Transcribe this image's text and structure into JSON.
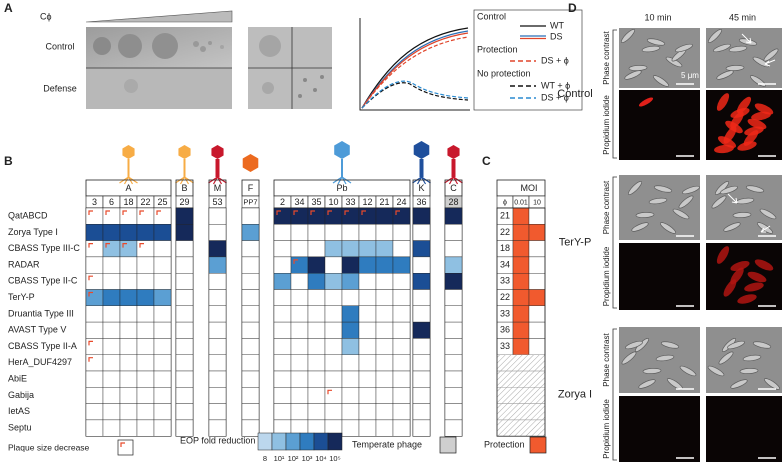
{
  "panel_a": {
    "label": "A",
    "cphi": "Cϕ",
    "rows": [
      "Control",
      "Defense"
    ],
    "legend": {
      "control": "Control",
      "wt": "WT",
      "ds": "DS",
      "protection": "Protection",
      "ds_phi_p": "DS + ϕ",
      "no_protection": "No protection",
      "wt_phi": "WT + ϕ",
      "ds_phi_n": "DS + ϕ"
    }
  },
  "panel_b": {
    "label": "B",
    "groups": [
      {
        "name": "A",
        "columns": [
          "3",
          "6",
          "18",
          "22",
          "25"
        ],
        "icon_color": "#f7ac45"
      },
      {
        "name": "B",
        "columns": [
          "29"
        ],
        "icon_color": "#f7ac45"
      },
      {
        "name": "M",
        "columns": [
          "53"
        ],
        "icon_color": "#c8182c"
      },
      {
        "name": "F",
        "columns": [
          "PP7"
        ],
        "icon_color": "#ec6a1f"
      },
      {
        "name": "Pb",
        "columns": [
          "2",
          "34",
          "35",
          "10",
          "33",
          "12",
          "21",
          "24"
        ],
        "icon_color": "#4d9bd8"
      },
      {
        "name": "K",
        "columns": [
          "36"
        ],
        "icon_color": "#1f4f9c"
      },
      {
        "name": "C",
        "columns": [
          "28"
        ],
        "icon_color": "#c8182c",
        "temperate": true
      }
    ],
    "rows": [
      {
        "name": "QatABCD",
        "eop": [
          0,
          0,
          0,
          0,
          0,
          6,
          0,
          0,
          6,
          6,
          6,
          6,
          6,
          6,
          6,
          6,
          6,
          6
        ],
        "plaque": [
          1,
          1,
          1,
          1,
          1,
          0,
          0,
          0,
          1,
          1,
          1,
          1,
          1,
          1,
          0,
          1,
          0,
          0
        ]
      },
      {
        "name": "Zorya Type I",
        "eop": [
          5,
          5,
          5,
          5,
          5,
          6,
          0,
          3,
          0,
          0,
          0,
          0,
          0,
          0,
          0,
          0,
          0,
          0
        ],
        "plaque": [
          0,
          0,
          0,
          0,
          0,
          0,
          0,
          0,
          0,
          0,
          0,
          0,
          0,
          0,
          0,
          0,
          0,
          0
        ]
      },
      {
        "name": "CBASS Type III-C",
        "eop": [
          0,
          2,
          2,
          0,
          0,
          0,
          6,
          0,
          0,
          0,
          0,
          2,
          2,
          2,
          2,
          0,
          5,
          0
        ],
        "plaque": [
          1,
          1,
          1,
          1,
          0,
          0,
          0,
          0,
          0,
          0,
          0,
          0,
          0,
          0,
          0,
          0,
          0,
          0
        ]
      },
      {
        "name": "RADAR",
        "eop": [
          0,
          0,
          0,
          0,
          0,
          0,
          3,
          0,
          0,
          4,
          6,
          0,
          6,
          4,
          4,
          4,
          0,
          2
        ],
        "plaque": [
          0,
          0,
          0,
          0,
          0,
          0,
          0,
          0,
          0,
          1,
          0,
          0,
          0,
          0,
          0,
          0,
          0,
          0
        ]
      },
      {
        "name": "CBASS Type II-C",
        "eop": [
          0,
          0,
          0,
          0,
          0,
          0,
          0,
          0,
          3,
          0,
          4,
          2,
          3,
          0,
          0,
          0,
          5,
          6
        ],
        "plaque": [
          1,
          0,
          0,
          0,
          0,
          0,
          0,
          0,
          0,
          0,
          0,
          0,
          0,
          0,
          0,
          0,
          0,
          0
        ]
      },
      {
        "name": "TerY-P",
        "eop": [
          3,
          4,
          4,
          4,
          3,
          0,
          0,
          0,
          0,
          0,
          0,
          0,
          0,
          0,
          0,
          0,
          0,
          0
        ],
        "plaque": [
          1,
          0,
          0,
          0,
          0,
          0,
          0,
          0,
          0,
          0,
          0,
          0,
          0,
          0,
          0,
          0,
          0,
          0
        ]
      },
      {
        "name": "Druantia Type III",
        "eop": [
          0,
          0,
          0,
          0,
          0,
          0,
          0,
          0,
          0,
          0,
          0,
          0,
          4,
          0,
          0,
          0,
          0,
          0
        ],
        "plaque": [
          0,
          0,
          0,
          0,
          0,
          0,
          0,
          0,
          0,
          0,
          0,
          0,
          0,
          0,
          0,
          0,
          0,
          0
        ]
      },
      {
        "name": "AVAST Type V",
        "eop": [
          0,
          0,
          0,
          0,
          0,
          0,
          0,
          0,
          0,
          0,
          0,
          0,
          4,
          0,
          0,
          0,
          6,
          0
        ],
        "plaque": [
          0,
          0,
          0,
          0,
          0,
          0,
          0,
          0,
          0,
          0,
          0,
          0,
          0,
          0,
          0,
          0,
          0,
          0
        ]
      },
      {
        "name": "CBASS Type II-A",
        "eop": [
          0,
          0,
          0,
          0,
          0,
          0,
          0,
          0,
          0,
          0,
          0,
          0,
          2,
          0,
          0,
          0,
          0,
          0
        ],
        "plaque": [
          1,
          0,
          0,
          0,
          0,
          0,
          0,
          0,
          0,
          0,
          0,
          0,
          0,
          0,
          0,
          0,
          0,
          0
        ]
      },
      {
        "name": "HerA_DUF4297",
        "eop": [
          0,
          0,
          0,
          0,
          0,
          0,
          0,
          0,
          0,
          0,
          0,
          0,
          0,
          0,
          0,
          0,
          0,
          0
        ],
        "plaque": [
          1,
          0,
          0,
          0,
          0,
          0,
          0,
          0,
          0,
          0,
          0,
          0,
          0,
          0,
          0,
          0,
          0,
          0
        ]
      },
      {
        "name": "AbiE",
        "eop": [
          0,
          0,
          0,
          0,
          0,
          0,
          0,
          0,
          0,
          0,
          0,
          0,
          0,
          0,
          0,
          0,
          0,
          0
        ],
        "plaque": [
          0,
          0,
          0,
          0,
          0,
          0,
          0,
          0,
          0,
          0,
          0,
          0,
          0,
          0,
          0,
          0,
          0,
          0
        ]
      },
      {
        "name": "Gabija",
        "eop": [
          0,
          0,
          0,
          0,
          0,
          0,
          0,
          0,
          0,
          0,
          0,
          0,
          0,
          0,
          0,
          0,
          0,
          0
        ],
        "plaque": [
          0,
          0,
          0,
          0,
          0,
          0,
          0,
          0,
          0,
          0,
          0,
          1,
          0,
          0,
          0,
          0,
          0,
          0
        ]
      },
      {
        "name": "IetAS",
        "eop": [
          0,
          0,
          0,
          0,
          0,
          0,
          0,
          0,
          0,
          0,
          0,
          0,
          0,
          0,
          0,
          0,
          0,
          0
        ],
        "plaque": [
          0,
          0,
          0,
          0,
          0,
          0,
          0,
          0,
          0,
          0,
          0,
          0,
          0,
          0,
          0,
          0,
          0,
          0
        ]
      },
      {
        "name": "Septu",
        "eop": [
          0,
          0,
          0,
          0,
          0,
          0,
          0,
          0,
          0,
          0,
          0,
          0,
          0,
          0,
          0,
          0,
          0,
          0
        ],
        "plaque": [
          0,
          0,
          0,
          0,
          0,
          0,
          0,
          0,
          0,
          0,
          0,
          0,
          0,
          0,
          0,
          0,
          0,
          0
        ]
      }
    ],
    "eop_colors": [
      "#bcd7ed",
      "#8fc0e2",
      "#5b9fd3",
      "#2f7cbf",
      "#1b4e95",
      "#15295a"
    ],
    "legend": {
      "plaque": "Plaque size decrease",
      "eop": "EOP fold reduction",
      "eop_levels": [
        "8",
        "10¹",
        "10²",
        "10³",
        "10⁴",
        "10⁵"
      ],
      "temperate": "Temperate phage"
    }
  },
  "panel_c": {
    "label": "C",
    "title": "MOI",
    "header": [
      "ϕ",
      "0.01",
      "10"
    ],
    "color": "#f15a2e",
    "legend": "Protection",
    "rows": [
      {
        "phage": "21",
        "protection": [
          1,
          0
        ]
      },
      {
        "phage": "22",
        "protection": [
          1,
          1
        ]
      },
      {
        "phage": "18",
        "protection": [
          1,
          0
        ]
      },
      {
        "phage": "34",
        "protection": [
          1,
          0
        ]
      },
      {
        "phage": "33",
        "protection": [
          1,
          0
        ]
      },
      {
        "phage": "22",
        "protection": [
          1,
          1
        ]
      },
      {
        "phage": "33",
        "protection": [
          1,
          0
        ]
      },
      {
        "phage": "36",
        "protection": [
          1,
          0
        ]
      },
      {
        "phage": "33",
        "protection": [
          1,
          0
        ]
      },
      {
        "phage": null,
        "protection": null
      },
      {
        "phage": null,
        "protection": null
      },
      {
        "phage": null,
        "protection": null
      },
      {
        "phage": null,
        "protection": null
      },
      {
        "phage": null,
        "protection": null
      }
    ]
  },
  "panel_d": {
    "label": "D",
    "times": [
      "10 min",
      "45 min"
    ],
    "groups": [
      "Control",
      "TerY-P",
      "Zorya I"
    ],
    "channels": [
      "Phase contrast",
      "Propidium iodide"
    ],
    "scale": "5 μm"
  }
}
